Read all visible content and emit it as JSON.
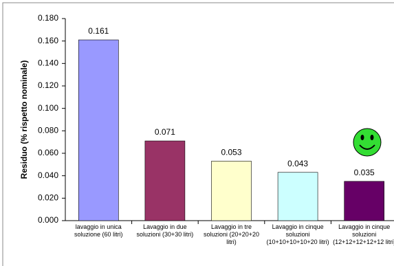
{
  "chart_data": {
    "type": "bar",
    "y_label": "Residuo (% rispetto nominale)",
    "categories": [
      "lavaggio in unica soluzione (60 litri)",
      "Lavaggio in due soluzioni (30+30 litri)",
      "Lavaggio in tre soluzioni (20+20+20 litri)",
      "Lavaggio in cinque soluzioni (10+10+10+10+20 litri)",
      "Lavaggio in cinque soluzioni (12+12+12+12+12 litri)"
    ],
    "values": [
      0.161,
      0.071,
      0.053,
      0.043,
      0.035
    ],
    "colors": [
      "#9999ff",
      "#993366",
      "#ffffcc",
      "#ccffff",
      "#660066"
    ],
    "ylim": [
      0,
      0.18
    ],
    "yticks": [
      {
        "value": 0,
        "label": "0.000"
      },
      {
        "value": 0.02,
        "label": "0.020"
      },
      {
        "value": 0.04,
        "label": "0.040"
      },
      {
        "value": 0.06,
        "label": "0.060"
      },
      {
        "value": 0.08,
        "label": "0.080"
      },
      {
        "value": 0.1,
        "label": "0.100"
      },
      {
        "value": 0.12,
        "label": "0.120"
      },
      {
        "value": 0.14,
        "label": "0.140"
      },
      {
        "value": 0.16,
        "label": "0.160"
      },
      {
        "value": 0.18,
        "label": "0.180"
      }
    ],
    "grid": false
  }
}
